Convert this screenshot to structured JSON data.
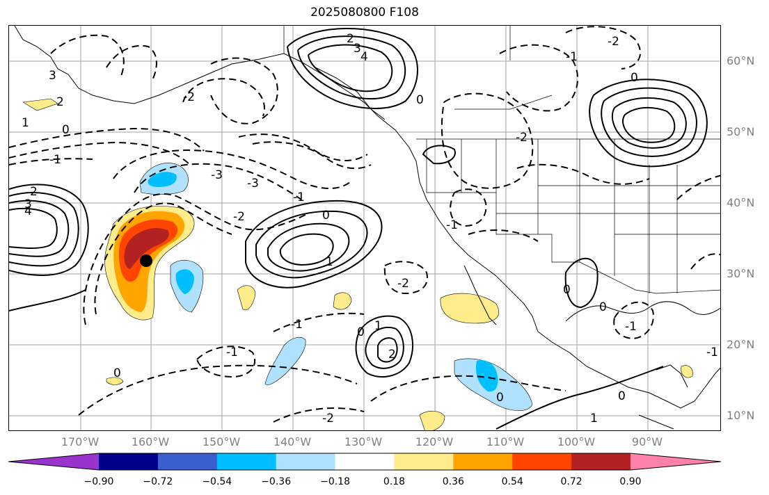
{
  "title": "2025080800 F108",
  "map": {
    "lat_labels": [
      "60°N",
      "50°N",
      "40°N",
      "30°N",
      "20°N",
      "10°N"
    ],
    "lon_labels": [
      "170°W",
      "160°W",
      "150°W",
      "140°W",
      "130°W",
      "120°W",
      "110°W",
      "100°W",
      "90°W"
    ],
    "contour_labels": [
      "3",
      "2",
      "0",
      "1",
      "-1",
      "-2",
      "-3",
      "4",
      "3",
      "2",
      "0",
      "1",
      "-1",
      "-2",
      "-3",
      "4",
      "3",
      "2",
      "0",
      "-1",
      "-2",
      "0",
      "-2",
      "0",
      "-1",
      "-1",
      "-2",
      "0",
      "1",
      "2",
      "0",
      "-1",
      "0",
      "-1",
      "0",
      "1",
      "-1",
      "0",
      "-2"
    ],
    "marker": {
      "lat": 32,
      "lon": -160
    }
  },
  "colorbar": {
    "colors": [
      "#9a32cd",
      "#00008b",
      "#3a5fcd",
      "#00bfff",
      "#b0e2ff",
      "#ffffff",
      "#ffec8b",
      "#ffa500",
      "#ff4500",
      "#b22222",
      "#ff82ab"
    ],
    "tick_labels": [
      "−0.90",
      "−0.72",
      "−0.54",
      "−0.36",
      "−0.18",
      "0.18",
      "0.36",
      "0.54",
      "0.72",
      "0.90"
    ]
  }
}
